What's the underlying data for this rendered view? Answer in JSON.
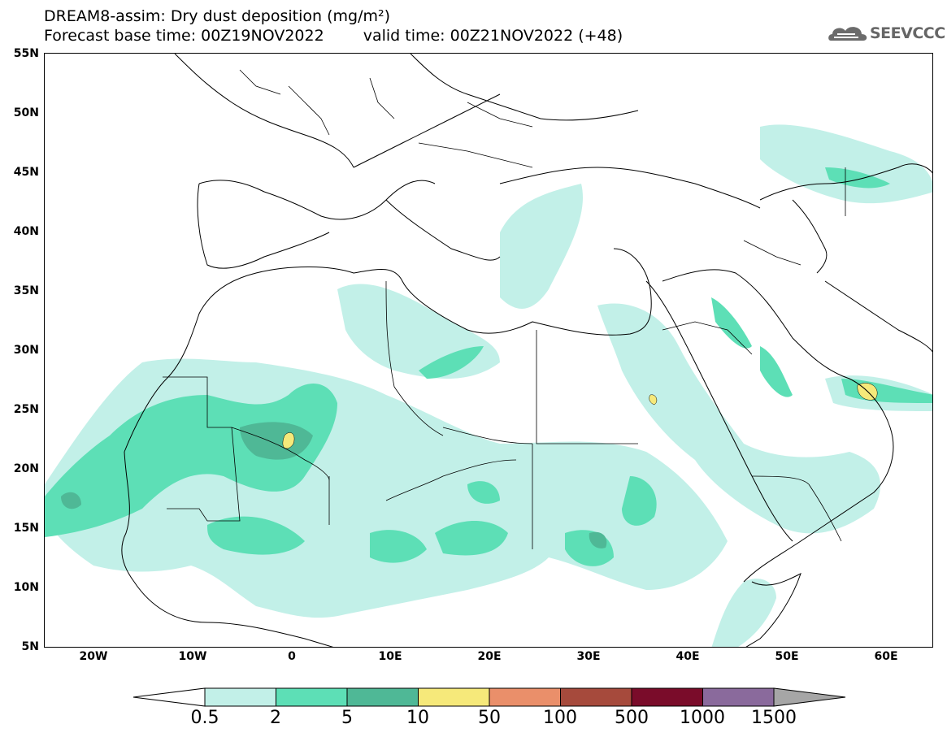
{
  "header": {
    "title_line1": "DREAM8-assim: Dry dust deposition (mg/m²)",
    "base_time": "Forecast base time: 00Z19NOV2022",
    "valid_time": "valid time: 00Z21NOV2022 (+48)"
  },
  "logo": {
    "text": "SEEVCCC",
    "icon": "cloud-icon"
  },
  "axes": {
    "lat_labels": [
      "55N",
      "50N",
      "45N",
      "40N",
      "35N",
      "30N",
      "25N",
      "20N",
      "15N",
      "10N",
      "5N"
    ],
    "lon_labels": [
      "20W",
      "10W",
      "0",
      "10E",
      "20E",
      "30E",
      "40E",
      "50E",
      "60E"
    ]
  },
  "legend": {
    "labels": [
      "0.5",
      "2",
      "5",
      "10",
      "50",
      "100",
      "500",
      "1000",
      "1500"
    ],
    "colors": [
      "#ffffff",
      "#c2f0e8",
      "#5ddfb6",
      "#4fb896",
      "#f6e97a",
      "#ea8f6a",
      "#a64a3c",
      "#7a0c2a",
      "#8a6a9c",
      "#a6a6a6"
    ]
  }
}
